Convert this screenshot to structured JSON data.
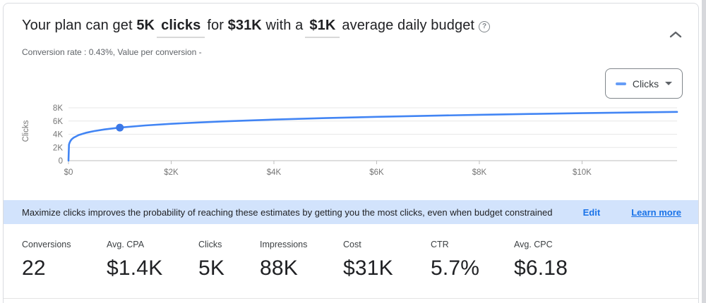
{
  "header": {
    "title": {
      "prefix": "Your plan can get",
      "clicks_value": "5K",
      "clicks_unit": "clicks",
      "for_word": "for",
      "cost_value": "$31K",
      "with_words": "with a",
      "budget_value": "$1K",
      "suffix": "average daily budget",
      "help_glyph": "?"
    },
    "subtitle": "Conversion rate : 0.43%, Value per conversion -"
  },
  "chart_controls": {
    "selector_label": "Clicks",
    "swatch_color": "#669df6"
  },
  "chart_data": {
    "type": "line",
    "title": "",
    "ylabel": "Clicks",
    "xlabel": "",
    "legend": [
      "Clicks"
    ],
    "grid": true,
    "x_tick_labels": [
      "$0",
      "$2K",
      "$4K",
      "$6K",
      "$8K",
      "$10K"
    ],
    "x_tick_values_k": [
      0,
      2,
      4,
      6,
      8,
      10
    ],
    "y_tick_labels": [
      "0",
      "2K",
      "4K",
      "6K",
      "8K"
    ],
    "y_tick_values": [
      0,
      2000,
      4000,
      6000,
      8000
    ],
    "xlim_budget_k": [
      0,
      11.85
    ],
    "ylim": [
      0,
      8000
    ],
    "series": [
      {
        "name": "Clicks",
        "color": "#4285f4",
        "budget_k": [
          0,
          0.01,
          0.02,
          0.04,
          0.06,
          0.1,
          0.2,
          0.35,
          0.5,
          0.7,
          1,
          1.5,
          2,
          2.5,
          3,
          4,
          5,
          6,
          7,
          8,
          9,
          10,
          11,
          11.85
        ],
        "clicks": [
          0,
          2419,
          2698,
          3009,
          3217,
          3477,
          3879,
          4237,
          4480,
          4725,
          5000,
          5330,
          5577,
          5775,
          5946,
          6222,
          6445,
          6633,
          6796,
          6940,
          7071,
          7189,
          7297,
          7384
        ]
      }
    ],
    "highlight_point": {
      "budget_k": 1,
      "clicks": 5000,
      "color": "#3b78e7"
    }
  },
  "banner": {
    "text": "Maximize clicks improves the probability of reaching these estimates by getting you the most clicks, even when budget constrained",
    "edit_label": "Edit",
    "learn_more_label": "Learn more",
    "background": "#d2e3fc",
    "link_color": "#1a73e8"
  },
  "metrics": [
    {
      "label": "Conversions",
      "value": "22"
    },
    {
      "label": "Avg. CPA",
      "value": "$1.4K"
    },
    {
      "label": "Clicks",
      "value": "5K"
    },
    {
      "label": "Impressions",
      "value": "88K"
    },
    {
      "label": "Cost",
      "value": "$31K"
    },
    {
      "label": "CTR",
      "value": "5.7%"
    },
    {
      "label": "Avg. CPC",
      "value": "$6.18"
    }
  ]
}
